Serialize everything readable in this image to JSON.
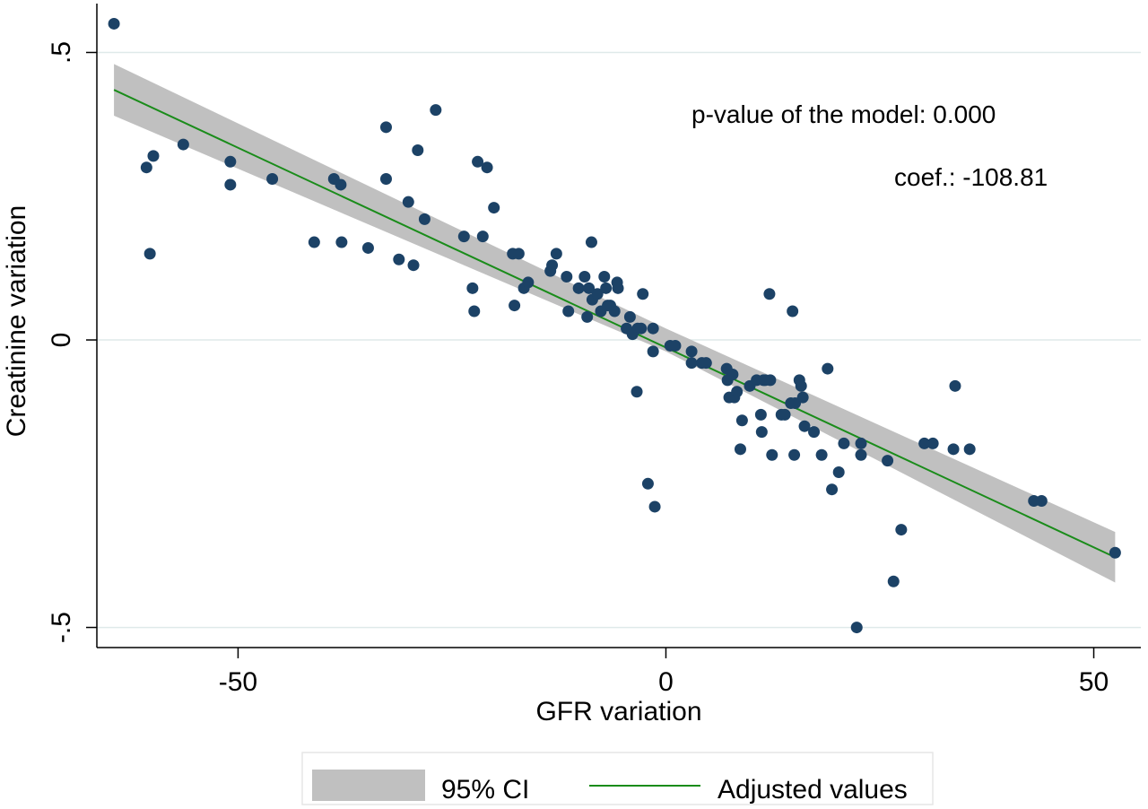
{
  "chart_data": {
    "type": "scatter",
    "xlabel": "GFR variation",
    "ylabel": "Creatinine variation",
    "xlim": [
      -66.5,
      55.5
    ],
    "ylim": [
      -0.535,
      0.585
    ],
    "x_ticks": [
      -50,
      0,
      50
    ],
    "x_tick_labels": [
      "-50",
      "0",
      "50"
    ],
    "y_ticks": [
      -0.5,
      0,
      0.5
    ],
    "y_tick_labels": [
      "-.5",
      "0",
      ".5"
    ],
    "grid": "horizontal",
    "annotations": [
      "p-value of the model: 0.000",
      "coef.: -108.81"
    ],
    "legend": {
      "placement": "bottom",
      "entries": [
        {
          "label": "95% CI",
          "kind": "band",
          "color": "#c0c0c0"
        },
        {
          "label": "Adjusted values",
          "kind": "line",
          "color": "#1a8c1a"
        }
      ]
    },
    "colors": {
      "points": "#1c4266",
      "fit": "#1a8c1a",
      "ci": "#c0c0c0",
      "grid": "#dfeaea"
    },
    "fit_line": {
      "x": [
        -64.5,
        52.5
      ],
      "y": [
        0.435,
        -0.378
      ]
    },
    "ci_band": {
      "x": [
        -64.5,
        0,
        52.5
      ],
      "lower": [
        0.39,
        -0.02,
        -0.422
      ],
      "upper": [
        0.48,
        0.02,
        -0.334
      ]
    },
    "points": [
      {
        "x": -64.5,
        "y": 0.55
      },
      {
        "x": -60.7,
        "y": 0.3
      },
      {
        "x": -60.3,
        "y": 0.15
      },
      {
        "x": -59.9,
        "y": 0.32
      },
      {
        "x": -56.4,
        "y": 0.34
      },
      {
        "x": -50.9,
        "y": 0.31
      },
      {
        "x": -50.9,
        "y": 0.27
      },
      {
        "x": -46.0,
        "y": 0.28
      },
      {
        "x": -41.1,
        "y": 0.17
      },
      {
        "x": -38.8,
        "y": 0.28
      },
      {
        "x": -38.0,
        "y": 0.27
      },
      {
        "x": -37.9,
        "y": 0.17
      },
      {
        "x": -34.8,
        "y": 0.16
      },
      {
        "x": -32.7,
        "y": 0.37
      },
      {
        "x": -32.7,
        "y": 0.28
      },
      {
        "x": -31.2,
        "y": 0.14
      },
      {
        "x": -30.1,
        "y": 0.24
      },
      {
        "x": -29.5,
        "y": 0.13
      },
      {
        "x": -29.0,
        "y": 0.33
      },
      {
        "x": -28.2,
        "y": 0.21
      },
      {
        "x": -26.9,
        "y": 0.4
      },
      {
        "x": -23.6,
        "y": 0.18
      },
      {
        "x": -22.6,
        "y": 0.09
      },
      {
        "x": -22.4,
        "y": 0.05
      },
      {
        "x": -22.0,
        "y": 0.31
      },
      {
        "x": -21.4,
        "y": 0.18
      },
      {
        "x": -20.9,
        "y": 0.3
      },
      {
        "x": -20.1,
        "y": 0.23
      },
      {
        "x": -17.9,
        "y": 0.15
      },
      {
        "x": -17.7,
        "y": 0.06
      },
      {
        "x": -17.2,
        "y": 0.15
      },
      {
        "x": -16.6,
        "y": 0.09
      },
      {
        "x": -16.1,
        "y": 0.1
      },
      {
        "x": -13.5,
        "y": 0.12
      },
      {
        "x": -13.3,
        "y": 0.13
      },
      {
        "x": -12.8,
        "y": 0.15
      },
      {
        "x": -11.6,
        "y": 0.11
      },
      {
        "x": -11.4,
        "y": 0.05
      },
      {
        "x": -10.2,
        "y": 0.09
      },
      {
        "x": -9.5,
        "y": 0.11
      },
      {
        "x": -9.2,
        "y": 0.04
      },
      {
        "x": -9.0,
        "y": 0.09
      },
      {
        "x": -8.7,
        "y": 0.17
      },
      {
        "x": -8.6,
        "y": 0.07
      },
      {
        "x": -8.0,
        "y": 0.08
      },
      {
        "x": -7.6,
        "y": 0.05
      },
      {
        "x": -7.2,
        "y": 0.11
      },
      {
        "x": -7.0,
        "y": 0.09
      },
      {
        "x": -6.8,
        "y": 0.06
      },
      {
        "x": -6.5,
        "y": 0.06
      },
      {
        "x": -6.0,
        "y": 0.05
      },
      {
        "x": -5.7,
        "y": 0.1
      },
      {
        "x": -5.6,
        "y": 0.09
      },
      {
        "x": -4.6,
        "y": 0.02
      },
      {
        "x": -4.2,
        "y": 0.04
      },
      {
        "x": -3.9,
        "y": 0.01
      },
      {
        "x": -3.3,
        "y": 0.02
      },
      {
        "x": -3.4,
        "y": -0.09
      },
      {
        "x": -2.9,
        "y": 0.02
      },
      {
        "x": -2.7,
        "y": 0.08
      },
      {
        "x": -2.1,
        "y": -0.25
      },
      {
        "x": -1.5,
        "y": -0.02
      },
      {
        "x": -1.5,
        "y": 0.02
      },
      {
        "x": -1.3,
        "y": -0.29
      },
      {
        "x": 0.5,
        "y": -0.01
      },
      {
        "x": 1.1,
        "y": -0.01
      },
      {
        "x": 3.0,
        "y": -0.02
      },
      {
        "x": 3.0,
        "y": -0.04
      },
      {
        "x": 4.2,
        "y": -0.04
      },
      {
        "x": 4.7,
        "y": -0.04
      },
      {
        "x": 7.1,
        "y": -0.05
      },
      {
        "x": 7.2,
        "y": -0.07
      },
      {
        "x": 7.4,
        "y": -0.1
      },
      {
        "x": 7.8,
        "y": -0.06
      },
      {
        "x": 8.0,
        "y": -0.1
      },
      {
        "x": 8.3,
        "y": -0.09
      },
      {
        "x": 8.7,
        "y": -0.19
      },
      {
        "x": 8.9,
        "y": -0.14
      },
      {
        "x": 9.8,
        "y": -0.08
      },
      {
        "x": 10.6,
        "y": -0.07
      },
      {
        "x": 11.1,
        "y": -0.13
      },
      {
        "x": 11.2,
        "y": -0.16
      },
      {
        "x": 11.4,
        "y": -0.07
      },
      {
        "x": 11.6,
        "y": -0.07
      },
      {
        "x": 12.1,
        "y": 0.08
      },
      {
        "x": 12.2,
        "y": -0.07
      },
      {
        "x": 12.4,
        "y": -0.2
      },
      {
        "x": 13.5,
        "y": -0.13
      },
      {
        "x": 13.9,
        "y": -0.13
      },
      {
        "x": 14.6,
        "y": -0.11
      },
      {
        "x": 14.8,
        "y": 0.05
      },
      {
        "x": 15.0,
        "y": -0.2
      },
      {
        "x": 15.1,
        "y": -0.11
      },
      {
        "x": 15.6,
        "y": -0.07
      },
      {
        "x": 15.8,
        "y": -0.08
      },
      {
        "x": 16.0,
        "y": -0.1
      },
      {
        "x": 16.2,
        "y": -0.15
      },
      {
        "x": 17.3,
        "y": -0.16
      },
      {
        "x": 18.2,
        "y": -0.2
      },
      {
        "x": 18.9,
        "y": -0.05
      },
      {
        "x": 19.4,
        "y": -0.26
      },
      {
        "x": 20.2,
        "y": -0.23
      },
      {
        "x": 20.8,
        "y": -0.18
      },
      {
        "x": 22.3,
        "y": -0.5
      },
      {
        "x": 22.8,
        "y": -0.18
      },
      {
        "x": 22.8,
        "y": -0.2
      },
      {
        "x": 25.9,
        "y": -0.21
      },
      {
        "x": 26.6,
        "y": -0.42
      },
      {
        "x": 27.5,
        "y": -0.33
      },
      {
        "x": 30.2,
        "y": -0.18
      },
      {
        "x": 31.2,
        "y": -0.18
      },
      {
        "x": 33.6,
        "y": -0.19
      },
      {
        "x": 33.8,
        "y": -0.08
      },
      {
        "x": 35.5,
        "y": -0.19
      },
      {
        "x": 43.0,
        "y": -0.28
      },
      {
        "x": 43.9,
        "y": -0.28
      },
      {
        "x": 52.5,
        "y": -0.37
      }
    ]
  }
}
